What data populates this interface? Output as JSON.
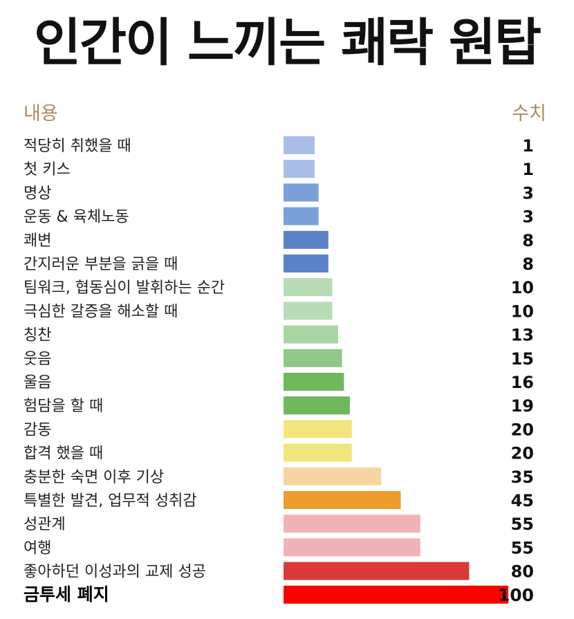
{
  "title": "인간이 느끼는 쾌락 원탑",
  "chart_data": {
    "type": "bar",
    "orientation": "horizontal",
    "header_label": "내용",
    "header_value": "수치",
    "categories": [
      "적당히 취했을 때",
      "첫 키스",
      "명상",
      "운동 & 육체노동",
      "쾌변",
      "간지러운 부분을 긁을 때",
      "팀워크, 협동심이 발휘하는 순간",
      "극심한 갈증을 해소할 때",
      "칭찬",
      "웃음",
      "울음",
      "험담을 할 때",
      "감동",
      "합격 했을 때",
      "충분한 숙면 이후 기상",
      "특별한 발견, 업무적 성취감",
      "성관계",
      "여행",
      "좋아하던 이성과의 교제 성공",
      "금투세 폐지"
    ],
    "values": [
      1,
      1,
      3,
      3,
      8,
      8,
      10,
      10,
      13,
      15,
      16,
      19,
      20,
      20,
      35,
      45,
      55,
      55,
      80,
      100
    ],
    "value_labels": [
      "1",
      "1",
      "3",
      "3",
      "8",
      "8",
      "10",
      "10",
      "13",
      "15",
      "16",
      "19",
      "20",
      "20",
      "35",
      "45",
      "55",
      "55",
      "80",
      "100"
    ],
    "colors": [
      "#a9bde6",
      "#a9bde6",
      "#7b9fd8",
      "#7b9fd8",
      "#5b84c8",
      "#5b84c8",
      "#b8dcb8",
      "#b8dcb8",
      "#a8d6a2",
      "#8fc987",
      "#6fb85e",
      "#6fb85e",
      "#f3e57e",
      "#f3e57e",
      "#f6d5a4",
      "#ee9c2e",
      "#f2b3b6",
      "#f2b3b6",
      "#d83a3a",
      "#ff0000"
    ],
    "emphasized_index": 19,
    "xlim": [
      0,
      100
    ]
  }
}
